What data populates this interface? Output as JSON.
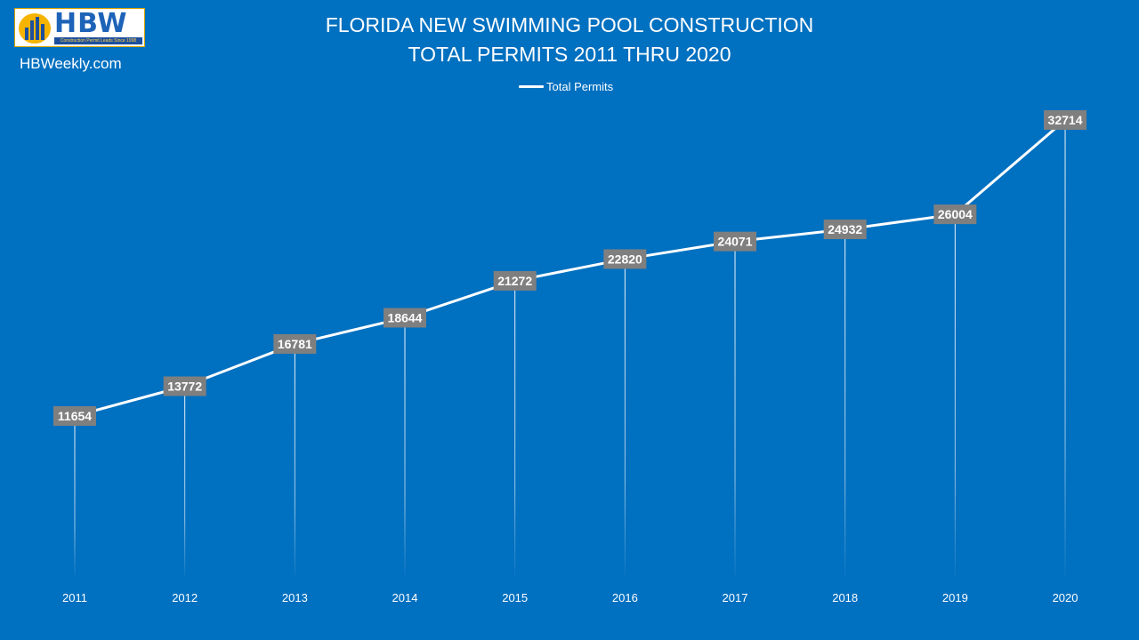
{
  "logo": {
    "text": "HBW",
    "tagline": "Construction Permit Leads Since 1998"
  },
  "site": "HBWeekly.com",
  "chart_data": {
    "type": "line",
    "title": [
      "FLORIDA NEW SWIMMING POOL CONSTRUCTION",
      "TOTAL PERMITS 2011 THRU 2020"
    ],
    "categories": [
      "2011",
      "2012",
      "2013",
      "2014",
      "2015",
      "2016",
      "2017",
      "2018",
      "2019",
      "2020"
    ],
    "series": [
      {
        "name": "Total Permits",
        "values": [
          11654,
          13772,
          16781,
          18644,
          21272,
          22820,
          24071,
          24932,
          26004,
          32714
        ],
        "color": "#ffffff"
      }
    ],
    "ylim": [
      0,
      35000
    ],
    "data_labels": true,
    "drop_lines": true,
    "legend": "top-center",
    "grid": false,
    "colors": {
      "background": "#0070c0",
      "label_box": "#7f7f7f",
      "line": "#ffffff"
    }
  }
}
